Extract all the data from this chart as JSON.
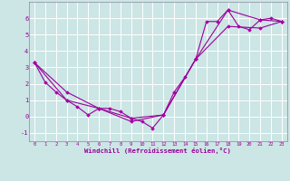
{
  "background_color": "#cce5e5",
  "grid_color": "#ffffff",
  "line_color": "#990099",
  "marker_color": "#aa00aa",
  "xlabel": "Windchill (Refroidissement éolien,°C)",
  "xlim": [
    -0.5,
    23.5
  ],
  "ylim": [
    -1.5,
    7.0
  ],
  "xticks": [
    0,
    1,
    2,
    3,
    4,
    5,
    6,
    7,
    8,
    9,
    10,
    11,
    12,
    13,
    14,
    15,
    16,
    17,
    18,
    19,
    20,
    21,
    22,
    23
  ],
  "yticks": [
    -1,
    0,
    1,
    2,
    3,
    4,
    5,
    6
  ],
  "series1_x": [
    0,
    1,
    2,
    3,
    4,
    5,
    6,
    7,
    8,
    9,
    10,
    11,
    12,
    13,
    14,
    15,
    16,
    17,
    18,
    19,
    20,
    21,
    22,
    23
  ],
  "series1_y": [
    3.3,
    2.1,
    1.5,
    1.0,
    0.6,
    0.1,
    0.5,
    0.5,
    0.3,
    -0.1,
    -0.3,
    -0.7,
    0.1,
    1.5,
    2.4,
    3.5,
    5.8,
    5.8,
    6.5,
    5.5,
    5.3,
    5.9,
    6.0,
    5.8
  ],
  "series2_x": [
    0,
    3,
    6,
    9,
    12,
    15,
    18,
    21,
    23
  ],
  "series2_y": [
    3.3,
    1.5,
    0.5,
    -0.1,
    0.1,
    3.5,
    6.5,
    5.9,
    5.8
  ],
  "series3_x": [
    0,
    3,
    6,
    9,
    12,
    15,
    18,
    21,
    23
  ],
  "series3_y": [
    3.3,
    1.0,
    0.5,
    -0.3,
    0.1,
    3.5,
    5.5,
    5.4,
    5.8
  ]
}
